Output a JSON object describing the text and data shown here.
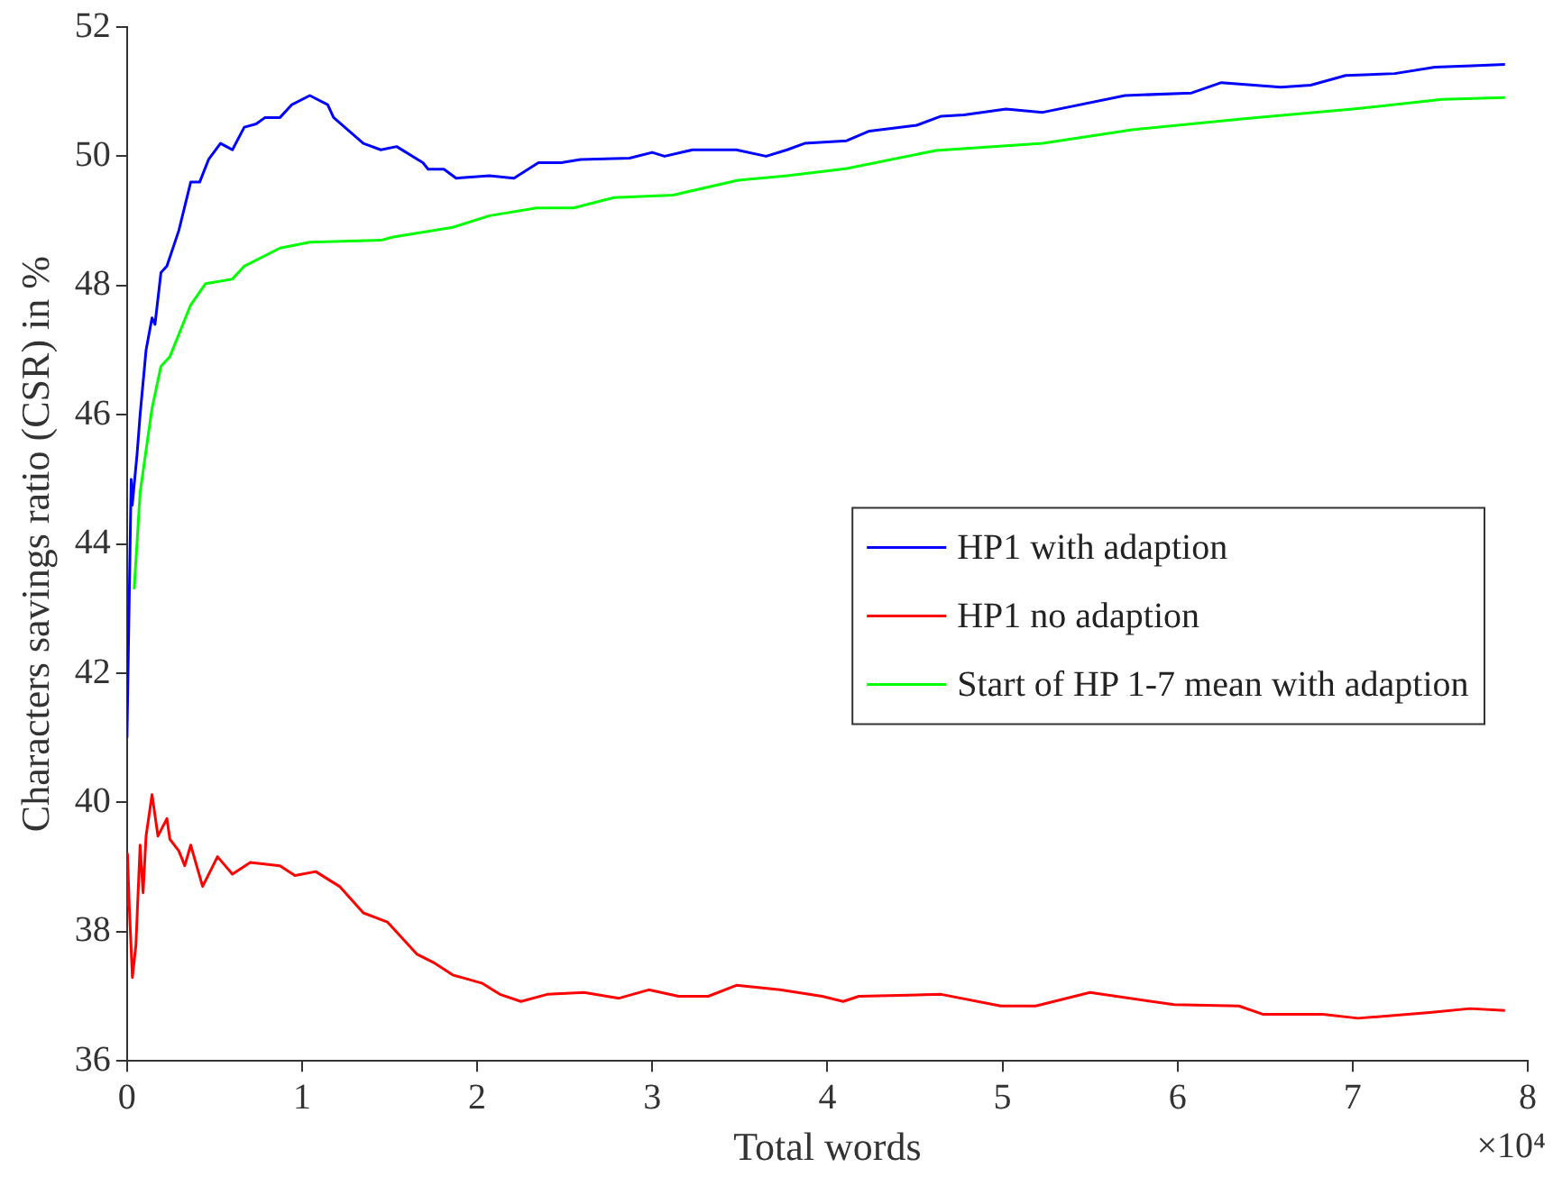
{
  "chart_data": {
    "type": "line",
    "xlabel": "Total words",
    "ylabel": "Characters savings ratio (CSR) in %",
    "annotations": [
      "×10⁴"
    ],
    "xlim": [
      0,
      8
    ],
    "xticks": [
      0,
      1,
      2,
      3,
      4,
      5,
      6,
      7,
      8
    ],
    "ylim": [
      36,
      52
    ],
    "yticks": [
      36,
      38,
      40,
      42,
      44,
      46,
      48,
      50,
      52
    ],
    "grid": false,
    "legend": "right",
    "marker": "none",
    "line_style": "solid",
    "series": [
      {
        "name": "HP1 with adaption",
        "color": "#0000ff",
        "x": [
          0,
          0.024,
          0.03,
          0.058,
          0.075,
          0.109,
          0.143,
          0.16,
          0.194,
          0.228,
          0.296,
          0.364,
          0.415,
          0.466,
          0.534,
          0.602,
          0.67,
          0.738,
          0.789,
          0.874,
          0.942,
          1.044,
          1.146,
          1.18,
          1.35,
          1.45,
          1.54,
          1.69,
          1.72,
          1.81,
          1.88,
          2.07,
          2.21,
          2.35,
          2.48,
          2.59,
          2.87,
          3.0,
          3.07,
          3.23,
          3.48,
          3.65,
          3.77,
          3.87,
          4.11,
          4.24,
          4.51,
          4.65,
          4.78,
          5.02,
          5.23,
          5.7,
          6.08,
          6.25,
          6.59,
          6.76,
          6.96,
          7.24,
          7.47,
          7.68,
          7.87
        ],
        "values": [
          41.0,
          45.0,
          44.6,
          45.4,
          46.0,
          47.0,
          47.5,
          47.4,
          48.2,
          48.3,
          48.85,
          49.6,
          49.6,
          49.95,
          50.2,
          50.1,
          50.45,
          50.5,
          50.6,
          50.6,
          50.8,
          50.94,
          50.8,
          50.6,
          50.2,
          50.1,
          50.15,
          49.9,
          49.8,
          49.8,
          49.66,
          49.7,
          49.66,
          49.9,
          49.9,
          49.95,
          49.97,
          50.06,
          50.0,
          50.1,
          50.1,
          50.0,
          50.1,
          50.2,
          50.24,
          50.39,
          50.48,
          50.62,
          50.64,
          50.73,
          50.68,
          50.94,
          50.98,
          51.14,
          51.07,
          51.1,
          51.25,
          51.28,
          51.38,
          51.4,
          51.42
        ]
      },
      {
        "name": "HP1 no adaption",
        "color": "#ff0000",
        "x": [
          0,
          0.003,
          0.013,
          0.031,
          0.051,
          0.075,
          0.092,
          0.109,
          0.143,
          0.177,
          0.228,
          0.245,
          0.296,
          0.33,
          0.364,
          0.432,
          0.517,
          0.602,
          0.704,
          0.874,
          0.959,
          1.078,
          1.214,
          1.35,
          1.487,
          1.657,
          1.759,
          1.86,
          2.03,
          2.13,
          2.25,
          2.4,
          2.61,
          2.81,
          2.98,
          3.15,
          3.32,
          3.48,
          3.73,
          3.97,
          4.09,
          4.18,
          4.65,
          4.99,
          5.19,
          5.5,
          5.98,
          6.35,
          6.49,
          6.83,
          7.03,
          7.44,
          7.67,
          7.87
        ],
        "values": [
          38.4,
          39.2,
          38.4,
          37.29,
          37.79,
          39.34,
          38.6,
          39.48,
          40.12,
          39.48,
          39.75,
          39.43,
          39.25,
          39.02,
          39.34,
          38.7,
          39.16,
          38.89,
          39.07,
          39.02,
          38.87,
          38.93,
          38.7,
          38.29,
          38.15,
          37.65,
          37.51,
          37.33,
          37.2,
          37.03,
          36.92,
          37.03,
          37.06,
          36.97,
          37.1,
          37.0,
          37.0,
          37.17,
          37.1,
          37.0,
          36.92,
          37.0,
          37.03,
          36.85,
          36.85,
          37.06,
          36.87,
          36.85,
          36.72,
          36.72,
          36.66,
          36.75,
          36.81,
          36.78
        ]
      },
      {
        "name": "Start of HP 1-7 mean with adaption",
        "color": "#00ff00",
        "x": [
          0.041,
          0.075,
          0.143,
          0.194,
          0.245,
          0.364,
          0.449,
          0.602,
          0.67,
          0.874,
          1.044,
          1.45,
          1.52,
          1.86,
          2.07,
          2.34,
          2.55,
          2.78,
          3.12,
          3.49,
          3.77,
          4.11,
          4.62,
          5.23,
          5.74,
          6.42,
          7.0,
          7.51,
          7.87
        ],
        "values": [
          43.3,
          44.8,
          46.1,
          46.75,
          46.9,
          47.7,
          48.03,
          48.1,
          48.3,
          48.58,
          48.67,
          48.7,
          48.75,
          48.9,
          49.08,
          49.2,
          49.2,
          49.36,
          49.4,
          49.63,
          49.7,
          49.81,
          50.09,
          50.2,
          50.41,
          50.59,
          50.73,
          50.88,
          50.91
        ]
      }
    ]
  }
}
